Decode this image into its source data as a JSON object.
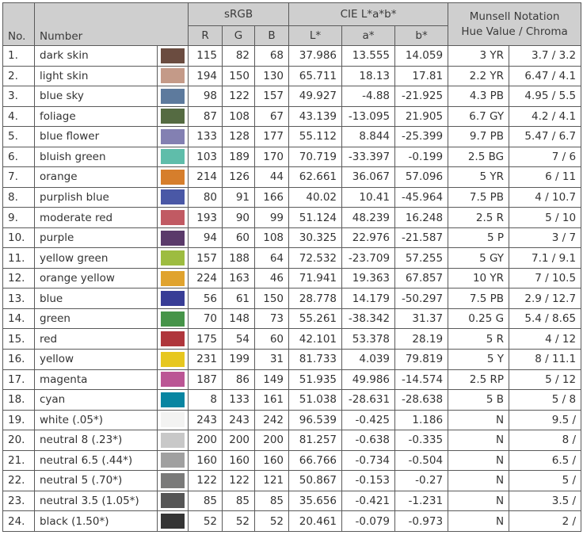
{
  "headers": {
    "no": "No.",
    "number": "Number",
    "srgb": "sRGB",
    "r": "R",
    "g": "G",
    "b": "B",
    "cie": "CIE L*a*b*",
    "L": "L*",
    "a": "a*",
    "bstar": "b*",
    "munsell_line1": "Munsell Notation",
    "munsell_line2": "Hue Value / Chroma"
  },
  "rows": [
    {
      "no": "1.",
      "name": "dark skin",
      "color": "#6b4c40",
      "r": "115",
      "g": "82",
      "b": "68",
      "L": "37.986",
      "a": "13.555",
      "bs": "14.059",
      "hue": "3 YR",
      "vc": "3.7 / 3.2"
    },
    {
      "no": "2.",
      "name": "light skin",
      "color": "#c49a88",
      "r": "194",
      "g": "150",
      "b": "130",
      "L": "65.711",
      "a": "18.13",
      "bs": "17.81",
      "hue": "2.2 YR",
      "vc": "6.47 / 4.1"
    },
    {
      "no": "3.",
      "name": "blue sky",
      "color": "#5d7a9d",
      "r": "98",
      "g": "122",
      "b": "157",
      "L": "49.927",
      "a": "-4.88",
      "bs": "-21.925",
      "hue": "4.3 PB",
      "vc": "4.95 / 5.5"
    },
    {
      "no": "4.",
      "name": "foliage",
      "color": "#556b42",
      "r": "87",
      "g": "108",
      "b": "67",
      "L": "43.139",
      "a": "-13.095",
      "bs": "21.905",
      "hue": "6.7 GY",
      "vc": "4.2 / 4.1"
    },
    {
      "no": "5.",
      "name": "blue flower",
      "color": "#8380b2",
      "r": "133",
      "g": "128",
      "b": "177",
      "L": "55.112",
      "a": "8.844",
      "bs": "-25.399",
      "hue": "9.7 PB",
      "vc": "5.47 / 6.7"
    },
    {
      "no": "6.",
      "name": "bluish green",
      "color": "#5fbdaa",
      "r": "103",
      "g": "189",
      "b": "170",
      "L": "70.719",
      "a": "-33.397",
      "bs": "-0.199",
      "hue": "2.5 BG",
      "vc": "7 / 6"
    },
    {
      "no": "7.",
      "name": "orange",
      "color": "#d67e2c",
      "r": "214",
      "g": "126",
      "b": "44",
      "L": "62.661",
      "a": "36.067",
      "bs": "57.096",
      "hue": "5 YR",
      "vc": "6 / 11"
    },
    {
      "no": "8.",
      "name": "purplish blue",
      "color": "#4a58a6",
      "r": "80",
      "g": "91",
      "b": "166",
      "L": "40.02",
      "a": "10.41",
      "bs": "-45.964",
      "hue": "7.5 PB",
      "vc": "4 / 10.7"
    },
    {
      "no": "9.",
      "name": "moderate red",
      "color": "#c15a63",
      "r": "193",
      "g": "90",
      "b": "99",
      "L": "51.124",
      "a": "48.239",
      "bs": "16.248",
      "hue": "2.5 R",
      "vc": "5 / 10"
    },
    {
      "no": "10.",
      "name": "purple",
      "color": "#5a3a6a",
      "r": "94",
      "g": "60",
      "b": "108",
      "L": "30.325",
      "a": "22.976",
      "bs": "-21.587",
      "hue": "5 P",
      "vc": "3 / 7"
    },
    {
      "no": "11.",
      "name": "yellow green",
      "color": "#9dbc40",
      "r": "157",
      "g": "188",
      "b": "64",
      "L": "72.532",
      "a": "-23.709",
      "bs": "57.255",
      "hue": "5 GY",
      "vc": "7.1 / 9.1"
    },
    {
      "no": "12.",
      "name": "orange yellow",
      "color": "#e0a32e",
      "r": "224",
      "g": "163",
      "b": "46",
      "L": "71.941",
      "a": "19.363",
      "bs": "67.857",
      "hue": "10 YR",
      "vc": "7 / 10.5"
    },
    {
      "no": "13.",
      "name": "blue",
      "color": "#383d96",
      "r": "56",
      "g": "61",
      "b": "150",
      "L": "28.778",
      "a": "14.179",
      "bs": "-50.297",
      "hue": "7.5 PB",
      "vc": "2.9 / 12.7"
    },
    {
      "no": "14.",
      "name": "green",
      "color": "#469449",
      "r": "70",
      "g": "148",
      "b": "73",
      "L": "55.261",
      "a": "-38.342",
      "bs": "31.37",
      "hue": "0.25 G",
      "vc": "5.4 / 8.65"
    },
    {
      "no": "15.",
      "name": "red",
      "color": "#af363c",
      "r": "175",
      "g": "54",
      "b": "60",
      "L": "42.101",
      "a": "53.378",
      "bs": "28.19",
      "hue": "5 R",
      "vc": "4 / 12"
    },
    {
      "no": "16.",
      "name": "yellow",
      "color": "#e7c71f",
      "r": "231",
      "g": "199",
      "b": "31",
      "L": "81.733",
      "a": "4.039",
      "bs": "79.819",
      "hue": "5 Y",
      "vc": "8 / 11.1"
    },
    {
      "no": "17.",
      "name": "magenta",
      "color": "#bb5695",
      "r": "187",
      "g": "86",
      "b": "149",
      "L": "51.935",
      "a": "49.986",
      "bs": "-14.574",
      "hue": "2.5 RP",
      "vc": "5 / 12"
    },
    {
      "no": "18.",
      "name": "cyan",
      "color": "#0885a1",
      "r": "8",
      "g": "133",
      "b": "161",
      "L": "51.038",
      "a": "-28.631",
      "bs": "-28.638",
      "hue": "5 B",
      "vc": "5 / 8"
    },
    {
      "no": "19.",
      "name": "white (.05*)",
      "color": "#f3f3f2",
      "r": "243",
      "g": "243",
      "b": "242",
      "L": "96.539",
      "a": "-0.425",
      "bs": "1.186",
      "hue": "N",
      "vc": "9.5 /"
    },
    {
      "no": "20.",
      "name": "neutral 8 (.23*)",
      "color": "#c8c8c8",
      "r": "200",
      "g": "200",
      "b": "200",
      "L": "81.257",
      "a": "-0.638",
      "bs": "-0.335",
      "hue": "N",
      "vc": "8 /"
    },
    {
      "no": "21.",
      "name": "neutral 6.5 (.44*)",
      "color": "#a0a0a0",
      "r": "160",
      "g": "160",
      "b": "160",
      "L": "66.766",
      "a": "-0.734",
      "bs": "-0.504",
      "hue": "N",
      "vc": "6.5 /"
    },
    {
      "no": "22.",
      "name": "neutral 5 (.70*)",
      "color": "#7a7a79",
      "r": "122",
      "g": "122",
      "b": "121",
      "L": "50.867",
      "a": "-0.153",
      "bs": "-0.27",
      "hue": "N",
      "vc": "5 /"
    },
    {
      "no": "23.",
      "name": "neutral 3.5 (1.05*)",
      "color": "#555555",
      "r": "85",
      "g": "85",
      "b": "85",
      "L": "35.656",
      "a": "-0.421",
      "bs": "-1.231",
      "hue": "N",
      "vc": "3.5 /"
    },
    {
      "no": "24.",
      "name": "black (1.50*)",
      "color": "#343434",
      "r": "52",
      "g": "52",
      "b": "52",
      "L": "20.461",
      "a": "-0.079",
      "bs": "-0.973",
      "hue": "N",
      "vc": "2 /"
    }
  ]
}
